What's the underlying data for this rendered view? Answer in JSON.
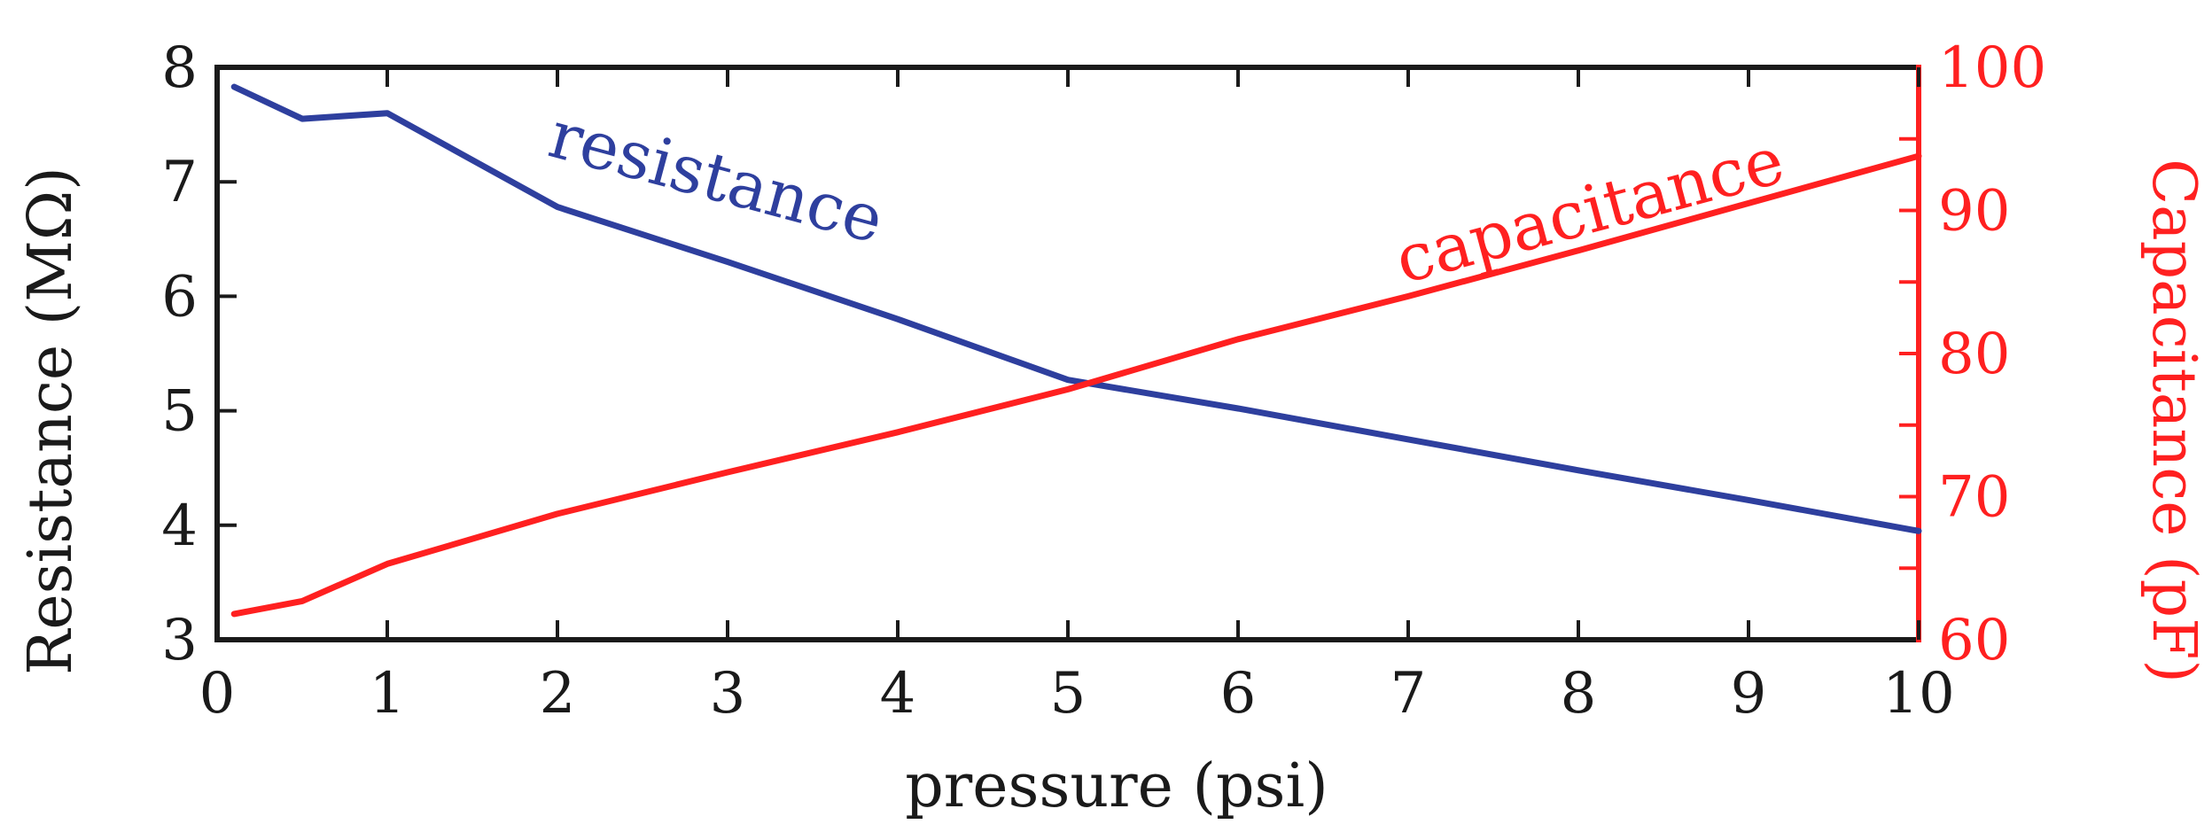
{
  "chart_data": {
    "type": "line",
    "xlabel": "pressure (psi)",
    "ylabel_left": "Resistance (MΩ)",
    "ylabel_right": "Capacitance (pF)",
    "xlim": [
      0,
      10
    ],
    "ylim_left": [
      3,
      8
    ],
    "ylim_right": [
      60,
      100
    ],
    "x_ticks": [
      0,
      1,
      2,
      3,
      4,
      5,
      6,
      7,
      8,
      9,
      10
    ],
    "y_left_ticks": [
      3,
      4,
      5,
      6,
      7,
      8
    ],
    "y_right_ticks": [
      60,
      70,
      80,
      90,
      100
    ],
    "grid": false,
    "legend": "none",
    "series": [
      {
        "name": "resistance",
        "axis": "left",
        "color": "#2e3f9e",
        "x": [
          0.1,
          0.5,
          1,
          2,
          3,
          4,
          5,
          6,
          7,
          8,
          9,
          10
        ],
        "y": [
          7.83,
          7.55,
          7.6,
          6.78,
          6.3,
          5.8,
          5.27,
          5.02,
          4.75,
          4.48,
          4.22,
          3.95
        ]
      },
      {
        "name": "capacitance",
        "axis": "right",
        "color": "#ff2020",
        "x": [
          0.1,
          0.5,
          1,
          2,
          3,
          4,
          5,
          6,
          7,
          8,
          9,
          10
        ],
        "y": [
          61.8,
          62.7,
          65.3,
          68.8,
          71.7,
          74.5,
          77.5,
          81.0,
          84.0,
          87.2,
          90.5,
          93.8
        ]
      }
    ],
    "left_axis_color": "#1a1a1a",
    "right_axis_color": "#ff2020"
  }
}
